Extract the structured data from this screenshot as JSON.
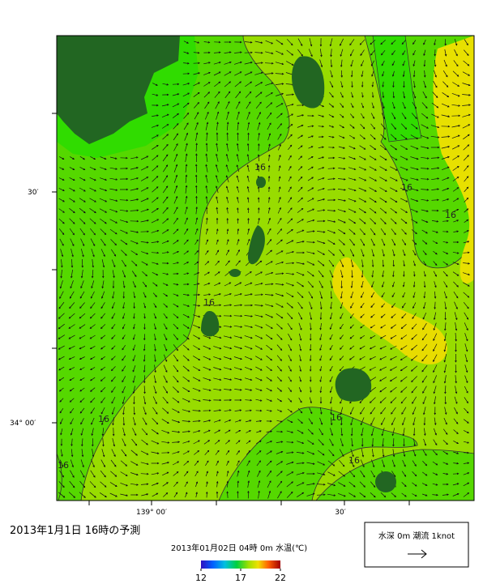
{
  "title": "2013年1月1日 16時の予測",
  "subtitle": "2013年01月02日 04時 0m 水温(℃)",
  "map": {
    "lat_labels": [
      "30′",
      "34° 00′"
    ],
    "lon_labels": [
      "139° 00′",
      "30′"
    ],
    "contour_labels": [
      "16",
      "16",
      "16",
      "16",
      "16",
      "16",
      "16",
      "16"
    ]
  },
  "colorbar": {
    "range": [
      12,
      22
    ],
    "ticks": [
      12,
      17,
      22
    ]
  },
  "legend": {
    "text": "水深 0m 潮流 1knot"
  }
}
